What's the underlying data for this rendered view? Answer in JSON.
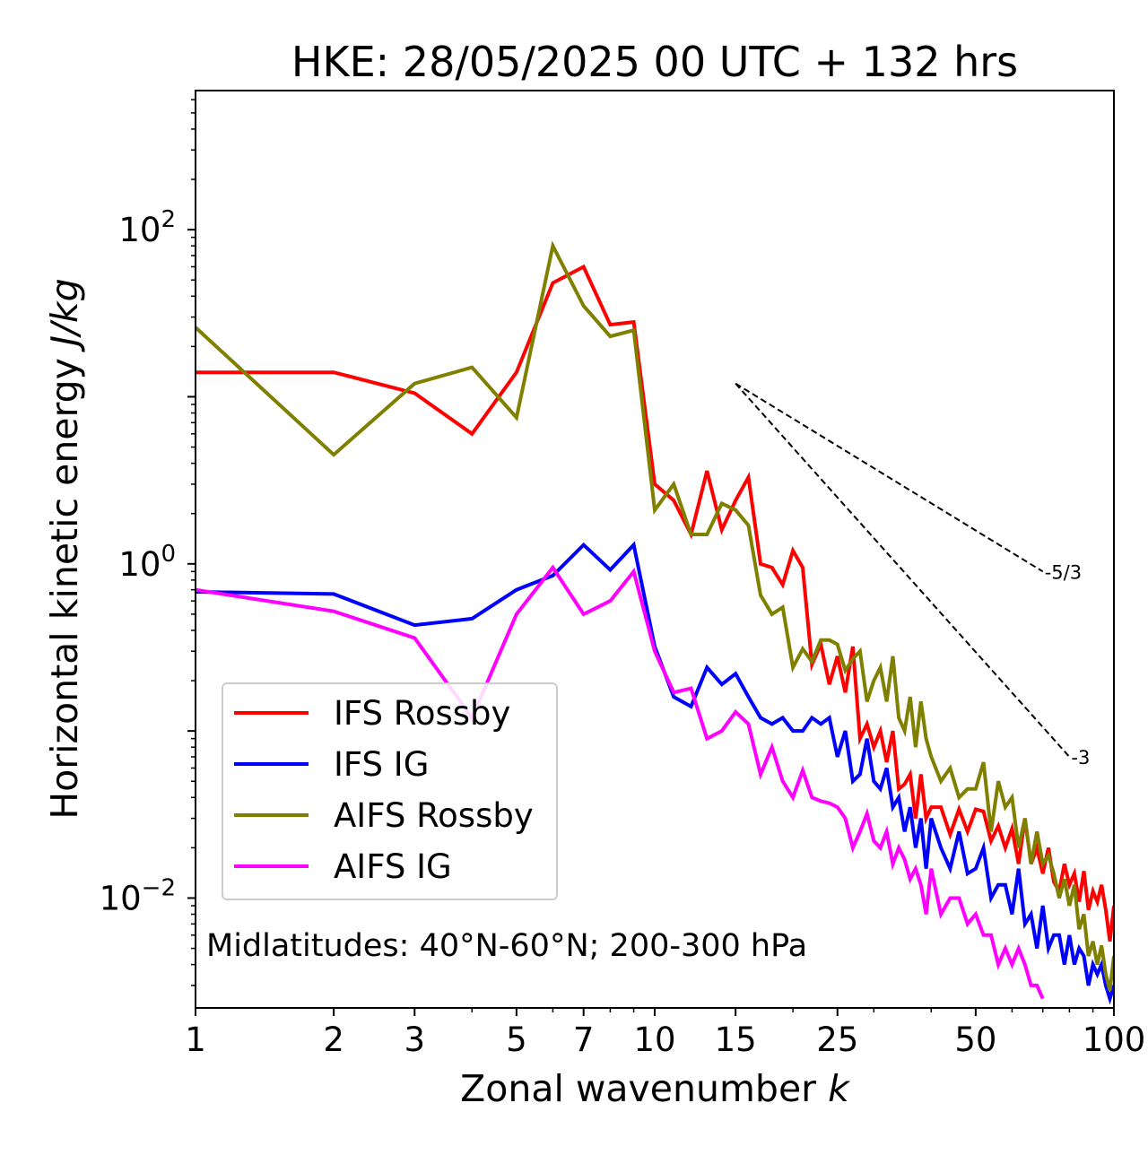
{
  "chart_data": {
    "type": "line",
    "title": "HKE: 28/05/2025 00 UTC + 132 hrs",
    "xlabel": "Zonal wavenumber",
    "xlabel_var": "k",
    "ylabel": "Horizontal kinetic energy",
    "ylabel_unit": "J/kg",
    "xscale": "log",
    "yscale": "log",
    "xlim": [
      1,
      100
    ],
    "ylim": [
      0.0022,
      680
    ],
    "x_ticks": [
      1,
      2,
      3,
      5,
      7,
      10,
      15,
      25,
      50,
      100
    ],
    "y_ticks": [
      {
        "value": 100,
        "base": "10",
        "exp": "2"
      },
      {
        "value": 1,
        "base": "10",
        "exp": "0"
      },
      {
        "value": 0.01,
        "base": "10",
        "exp": "−2"
      }
    ],
    "grid": false,
    "legend_position": "lower-left",
    "annotation": "Midlatitudes: 40°N-60°N; 200-300 hPa",
    "series": [
      {
        "name": "IFS Rossby",
        "color": "#ff0000",
        "x": [
          1,
          2,
          3,
          4,
          5,
          6,
          7,
          8,
          9,
          10,
          11,
          12,
          13,
          14,
          15,
          16,
          17,
          18,
          19,
          20,
          21,
          22,
          23,
          24,
          25,
          26,
          27,
          28,
          29,
          30,
          31,
          32,
          33,
          34,
          35,
          36,
          37,
          38,
          39,
          40,
          42,
          44,
          46,
          48,
          50,
          52,
          54,
          56,
          58,
          60,
          62,
          64,
          66,
          68,
          70,
          72,
          74,
          76,
          78,
          80,
          82,
          84,
          86,
          88,
          90,
          92,
          94,
          96,
          98,
          100
        ],
        "y": [
          14,
          14,
          10.5,
          6,
          14,
          48,
          60,
          27,
          28,
          3,
          2.4,
          1.5,
          3.6,
          1.6,
          2.4,
          3.3,
          1.0,
          0.95,
          0.75,
          1.2,
          0.95,
          0.25,
          0.33,
          0.19,
          0.28,
          0.17,
          0.32,
          0.09,
          0.11,
          0.08,
          0.1,
          0.065,
          0.1,
          0.045,
          0.048,
          0.055,
          0.03,
          0.055,
          0.03,
          0.035,
          0.035,
          0.024,
          0.034,
          0.025,
          0.034,
          0.033,
          0.022,
          0.027,
          0.02,
          0.026,
          0.016,
          0.03,
          0.016,
          0.02,
          0.014,
          0.02,
          0.0125,
          0.011,
          0.016,
          0.012,
          0.014,
          0.0095,
          0.0145,
          0.0085,
          0.011,
          0.0095,
          0.012,
          0.0085,
          0.0055,
          0.009
        ]
      },
      {
        "name": "IFS IG",
        "color": "#0000ff",
        "x": [
          1,
          2,
          3,
          4,
          5,
          6,
          7,
          8,
          9,
          10,
          11,
          12,
          13,
          14,
          15,
          16,
          17,
          18,
          19,
          20,
          21,
          22,
          23,
          24,
          25,
          26,
          27,
          28,
          29,
          30,
          31,
          32,
          33,
          34,
          35,
          36,
          37,
          38,
          39,
          40,
          42,
          44,
          46,
          48,
          50,
          52,
          54,
          56,
          58,
          60,
          62,
          64,
          66,
          68,
          70,
          72,
          74,
          76,
          78,
          80,
          82,
          84,
          86,
          88,
          90,
          92,
          94,
          96,
          98,
          100
        ],
        "y": [
          0.68,
          0.66,
          0.43,
          0.47,
          0.7,
          0.85,
          1.3,
          0.92,
          1.3,
          0.32,
          0.16,
          0.14,
          0.24,
          0.19,
          0.22,
          0.16,
          0.12,
          0.11,
          0.12,
          0.1,
          0.1,
          0.12,
          0.11,
          0.12,
          0.07,
          0.1,
          0.05,
          0.055,
          0.09,
          0.05,
          0.045,
          0.06,
          0.035,
          0.04,
          0.025,
          0.035,
          0.02,
          0.03,
          0.015,
          0.03,
          0.02,
          0.015,
          0.025,
          0.014,
          0.015,
          0.02,
          0.01,
          0.012,
          0.012,
          0.008,
          0.015,
          0.007,
          0.008,
          0.005,
          0.009,
          0.005,
          0.006,
          0.006,
          0.004,
          0.006,
          0.004,
          0.005,
          0.0045,
          0.003,
          0.004,
          0.0035,
          0.004,
          0.003,
          0.0025,
          0.003
        ]
      },
      {
        "name": "AIFS Rossby",
        "color": "#808000",
        "x": [
          1,
          2,
          3,
          4,
          5,
          6,
          7,
          8,
          9,
          10,
          11,
          12,
          13,
          14,
          15,
          16,
          17,
          18,
          19,
          20,
          21,
          22,
          23,
          24,
          25,
          26,
          27,
          28,
          29,
          30,
          31,
          32,
          33,
          34,
          35,
          36,
          37,
          38,
          39,
          40,
          42,
          44,
          46,
          48,
          50,
          52,
          54,
          56,
          58,
          60,
          62,
          64,
          66,
          68,
          70,
          72,
          74,
          76,
          78,
          80,
          82,
          84,
          86,
          88,
          90,
          92,
          94,
          96,
          98,
          100
        ],
        "y": [
          26,
          4.5,
          12,
          15,
          7.5,
          80,
          35,
          23,
          25,
          2.1,
          3,
          1.5,
          1.5,
          2.3,
          2.1,
          1.7,
          0.65,
          0.5,
          0.55,
          0.24,
          0.31,
          0.26,
          0.35,
          0.35,
          0.33,
          0.23,
          0.27,
          0.3,
          0.15,
          0.2,
          0.24,
          0.15,
          0.28,
          0.12,
          0.1,
          0.16,
          0.08,
          0.15,
          0.09,
          0.07,
          0.05,
          0.06,
          0.04,
          0.045,
          0.045,
          0.065,
          0.025,
          0.05,
          0.035,
          0.04,
          0.02,
          0.03,
          0.016,
          0.025,
          0.016,
          0.018,
          0.014,
          0.01,
          0.013,
          0.009,
          0.012,
          0.0065,
          0.008,
          0.0045,
          0.0055,
          0.004,
          0.0052,
          0.0035,
          0.0028,
          0.0045
        ]
      },
      {
        "name": "AIFS IG",
        "color": "#ff00ff",
        "x": [
          1,
          2,
          3,
          4,
          5,
          6,
          7,
          8,
          9,
          10,
          11,
          12,
          13,
          14,
          15,
          16,
          17,
          18,
          19,
          20,
          21,
          22,
          23,
          24,
          25,
          26,
          27,
          28,
          29,
          30,
          31,
          32,
          33,
          34,
          35,
          36,
          37,
          38,
          39,
          40,
          42,
          44,
          46,
          48,
          50,
          52,
          54,
          56,
          58,
          60,
          62,
          64,
          66,
          68,
          70
        ],
        "y": [
          0.7,
          0.52,
          0.36,
          0.12,
          0.5,
          0.95,
          0.5,
          0.6,
          0.9,
          0.3,
          0.17,
          0.18,
          0.09,
          0.1,
          0.13,
          0.11,
          0.055,
          0.08,
          0.05,
          0.04,
          0.058,
          0.04,
          0.038,
          0.037,
          0.035,
          0.03,
          0.02,
          0.025,
          0.032,
          0.022,
          0.02,
          0.025,
          0.016,
          0.02,
          0.017,
          0.013,
          0.015,
          0.012,
          0.008,
          0.015,
          0.008,
          0.01,
          0.01,
          0.007,
          0.008,
          0.006,
          0.006,
          0.004,
          0.005,
          0.004,
          0.005,
          0.004,
          0.003,
          0.003,
          0.0025
        ]
      }
    ],
    "reference_lines": [
      {
        "label": "-5/3",
        "color": "#000000",
        "x": [
          15,
          70
        ],
        "y": [
          12,
          0.9
        ]
      },
      {
        "label": "-3",
        "color": "#000000",
        "x": [
          15,
          80
        ],
        "y": [
          12,
          0.07
        ]
      }
    ]
  }
}
